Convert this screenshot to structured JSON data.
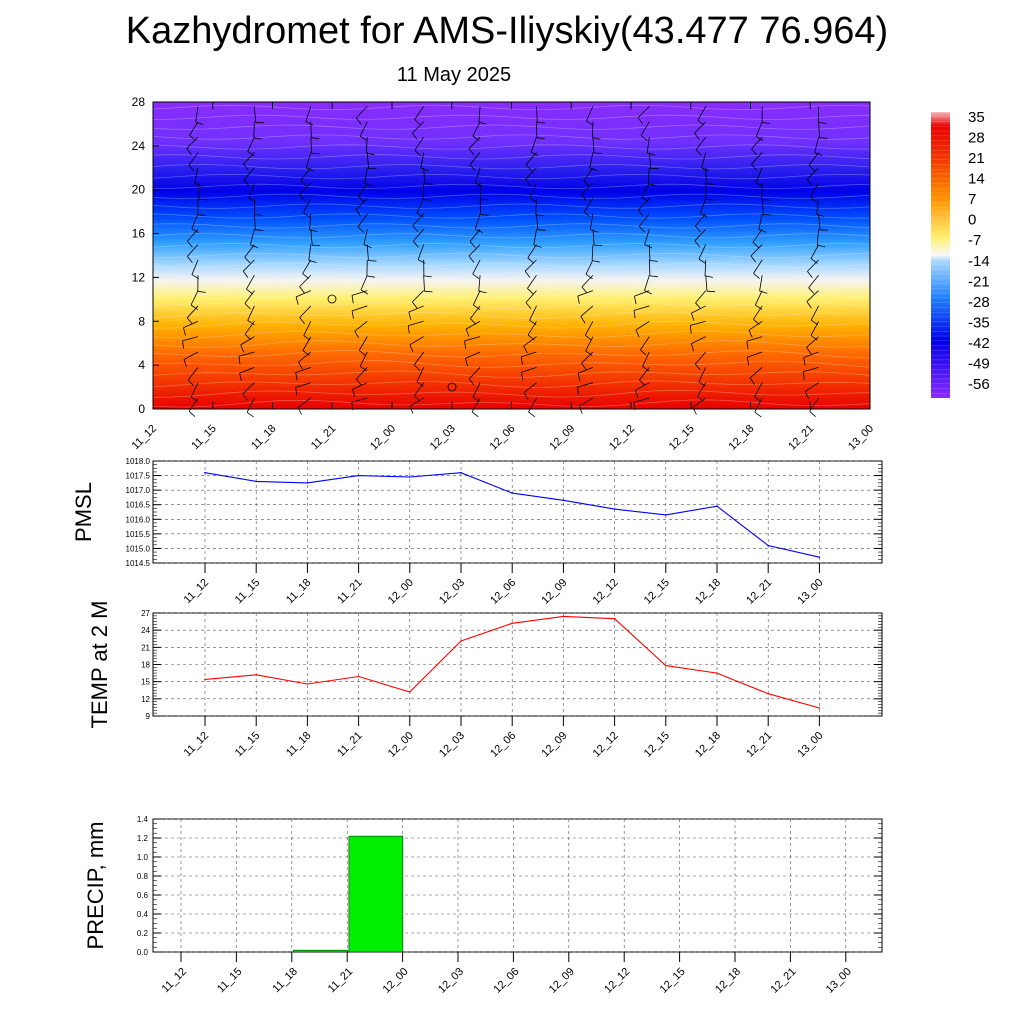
{
  "title": "Kazhydromet for AMS-Iliyskiy(43.477 76.964)",
  "subtitle": "11 May 2025",
  "colors": {
    "pmsl_line": "#0000ff",
    "temp_line": "#ff0000",
    "precip_bar": "#00ee00"
  },
  "chart_data": [
    {
      "type": "heatmap",
      "x_tick_labels": [
        "11_12",
        "11_15",
        "11_18",
        "11_21",
        "12_00",
        "12_03",
        "12_06",
        "12_09",
        "12_12",
        "12_15",
        "12_18",
        "12_21",
        "13_00"
      ],
      "y_tick_labels": [
        "0",
        "4",
        "8",
        "12",
        "16",
        "20",
        "24",
        "28"
      ],
      "ylim": [
        0,
        28
      ],
      "colorbar_labels": [
        "35",
        "28",
        "21",
        "14",
        "7",
        "0",
        "-7",
        "-14",
        "-21",
        "-28",
        "-35",
        "-42",
        "-49",
        "-56"
      ],
      "wind_barbs": true
    },
    {
      "type": "line",
      "ylabel": "PMSL",
      "x": [
        "11_12",
        "11_15",
        "11_18",
        "11_21",
        "12_00",
        "12_03",
        "12_06",
        "12_09",
        "12_12",
        "12_15",
        "12_18",
        "12_21",
        "13_00"
      ],
      "values": [
        1017.6,
        1017.3,
        1017.25,
        1017.5,
        1017.45,
        1017.6,
        1016.9,
        1016.65,
        1016.35,
        1016.15,
        1016.45,
        1015.1,
        1014.7
      ],
      "ylim": [
        1014.5,
        1018.0
      ],
      "y_tick_labels": [
        "1018.0",
        "1017.5",
        "1017.0",
        "1016.5",
        "1016.0",
        "1015.5",
        "1015.0",
        "1014.5"
      ],
      "grid": true
    },
    {
      "type": "line",
      "ylabel": "TEMP at 2 M",
      "x": [
        "11_12",
        "11_15",
        "11_18",
        "11_21",
        "12_00",
        "12_03",
        "12_06",
        "12_09",
        "12_12",
        "12_15",
        "12_18",
        "12_21",
        "13_00"
      ],
      "values": [
        15.4,
        16.2,
        14.6,
        15.9,
        13.2,
        22.1,
        25.2,
        26.4,
        26.0,
        17.8,
        16.5,
        12.9,
        10.4
      ],
      "ylim": [
        9,
        27
      ],
      "y_tick_labels": [
        "27",
        "24",
        "21",
        "18",
        "15",
        "12",
        "9"
      ],
      "grid": true
    },
    {
      "type": "bar",
      "ylabel": "PRECIP, mm",
      "x": [
        "11_12",
        "11_15",
        "11_18",
        "11_21",
        "12_00",
        "12_03",
        "12_06",
        "12_09",
        "12_12",
        "12_15",
        "12_18",
        "12_21",
        "13_00"
      ],
      "values": [
        0,
        0,
        0.02,
        1.22,
        0,
        0,
        0,
        0,
        0,
        0,
        0,
        0,
        0
      ],
      "ylim": [
        0,
        1.4
      ],
      "y_tick_labels": [
        "1.4",
        "1.2",
        "1.0",
        "0.8",
        "0.6",
        "0.4",
        "0.2",
        "0.0"
      ],
      "grid": true
    }
  ]
}
